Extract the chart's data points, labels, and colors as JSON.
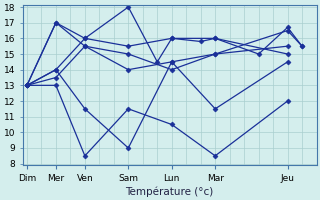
{
  "xlabel": "Température (°c)",
  "background_color": "#d4eeed",
  "grid_color": "#aacfcf",
  "line_color": "#1a3099",
  "spine_color": "#4477aa",
  "ylim": [
    8,
    18
  ],
  "yticks": [
    8,
    9,
    10,
    11,
    12,
    13,
    14,
    15,
    16,
    17,
    18
  ],
  "day_labels": [
    "Dim",
    "Mer",
    "Ven",
    "Sam",
    "Lun",
    "Mar",
    "Jeu"
  ],
  "day_x": [
    0,
    2,
    4,
    7,
    10,
    13,
    18
  ],
  "x_max": 20,
  "lines": [
    {
      "x": [
        0,
        2,
        4,
        7,
        9,
        10,
        12,
        13,
        16,
        18,
        19
      ],
      "y": [
        13,
        17,
        16,
        18,
        14.5,
        16,
        15.8,
        16,
        15,
        16.7,
        15.5
      ]
    },
    {
      "x": [
        0,
        2,
        4,
        7,
        10,
        13,
        18
      ],
      "y": [
        13,
        13.5,
        15.5,
        14,
        14.5,
        15,
        15.5
      ]
    },
    {
      "x": [
        0,
        2,
        4,
        7,
        10,
        13,
        18
      ],
      "y": [
        13,
        13,
        8.5,
        11.5,
        10.5,
        8.5,
        12
      ]
    },
    {
      "x": [
        0,
        2,
        4,
        7,
        10,
        13,
        18
      ],
      "y": [
        13,
        14,
        16,
        15.5,
        16,
        16,
        15
      ]
    },
    {
      "x": [
        0,
        2,
        4,
        7,
        10,
        13,
        18
      ],
      "y": [
        13,
        14,
        11.5,
        9,
        14.5,
        11.5,
        14.5
      ]
    },
    {
      "x": [
        0,
        2,
        4,
        7,
        10,
        13,
        18,
        19
      ],
      "y": [
        13,
        17,
        15.5,
        15,
        14,
        15,
        16.5,
        15.5
      ]
    }
  ]
}
